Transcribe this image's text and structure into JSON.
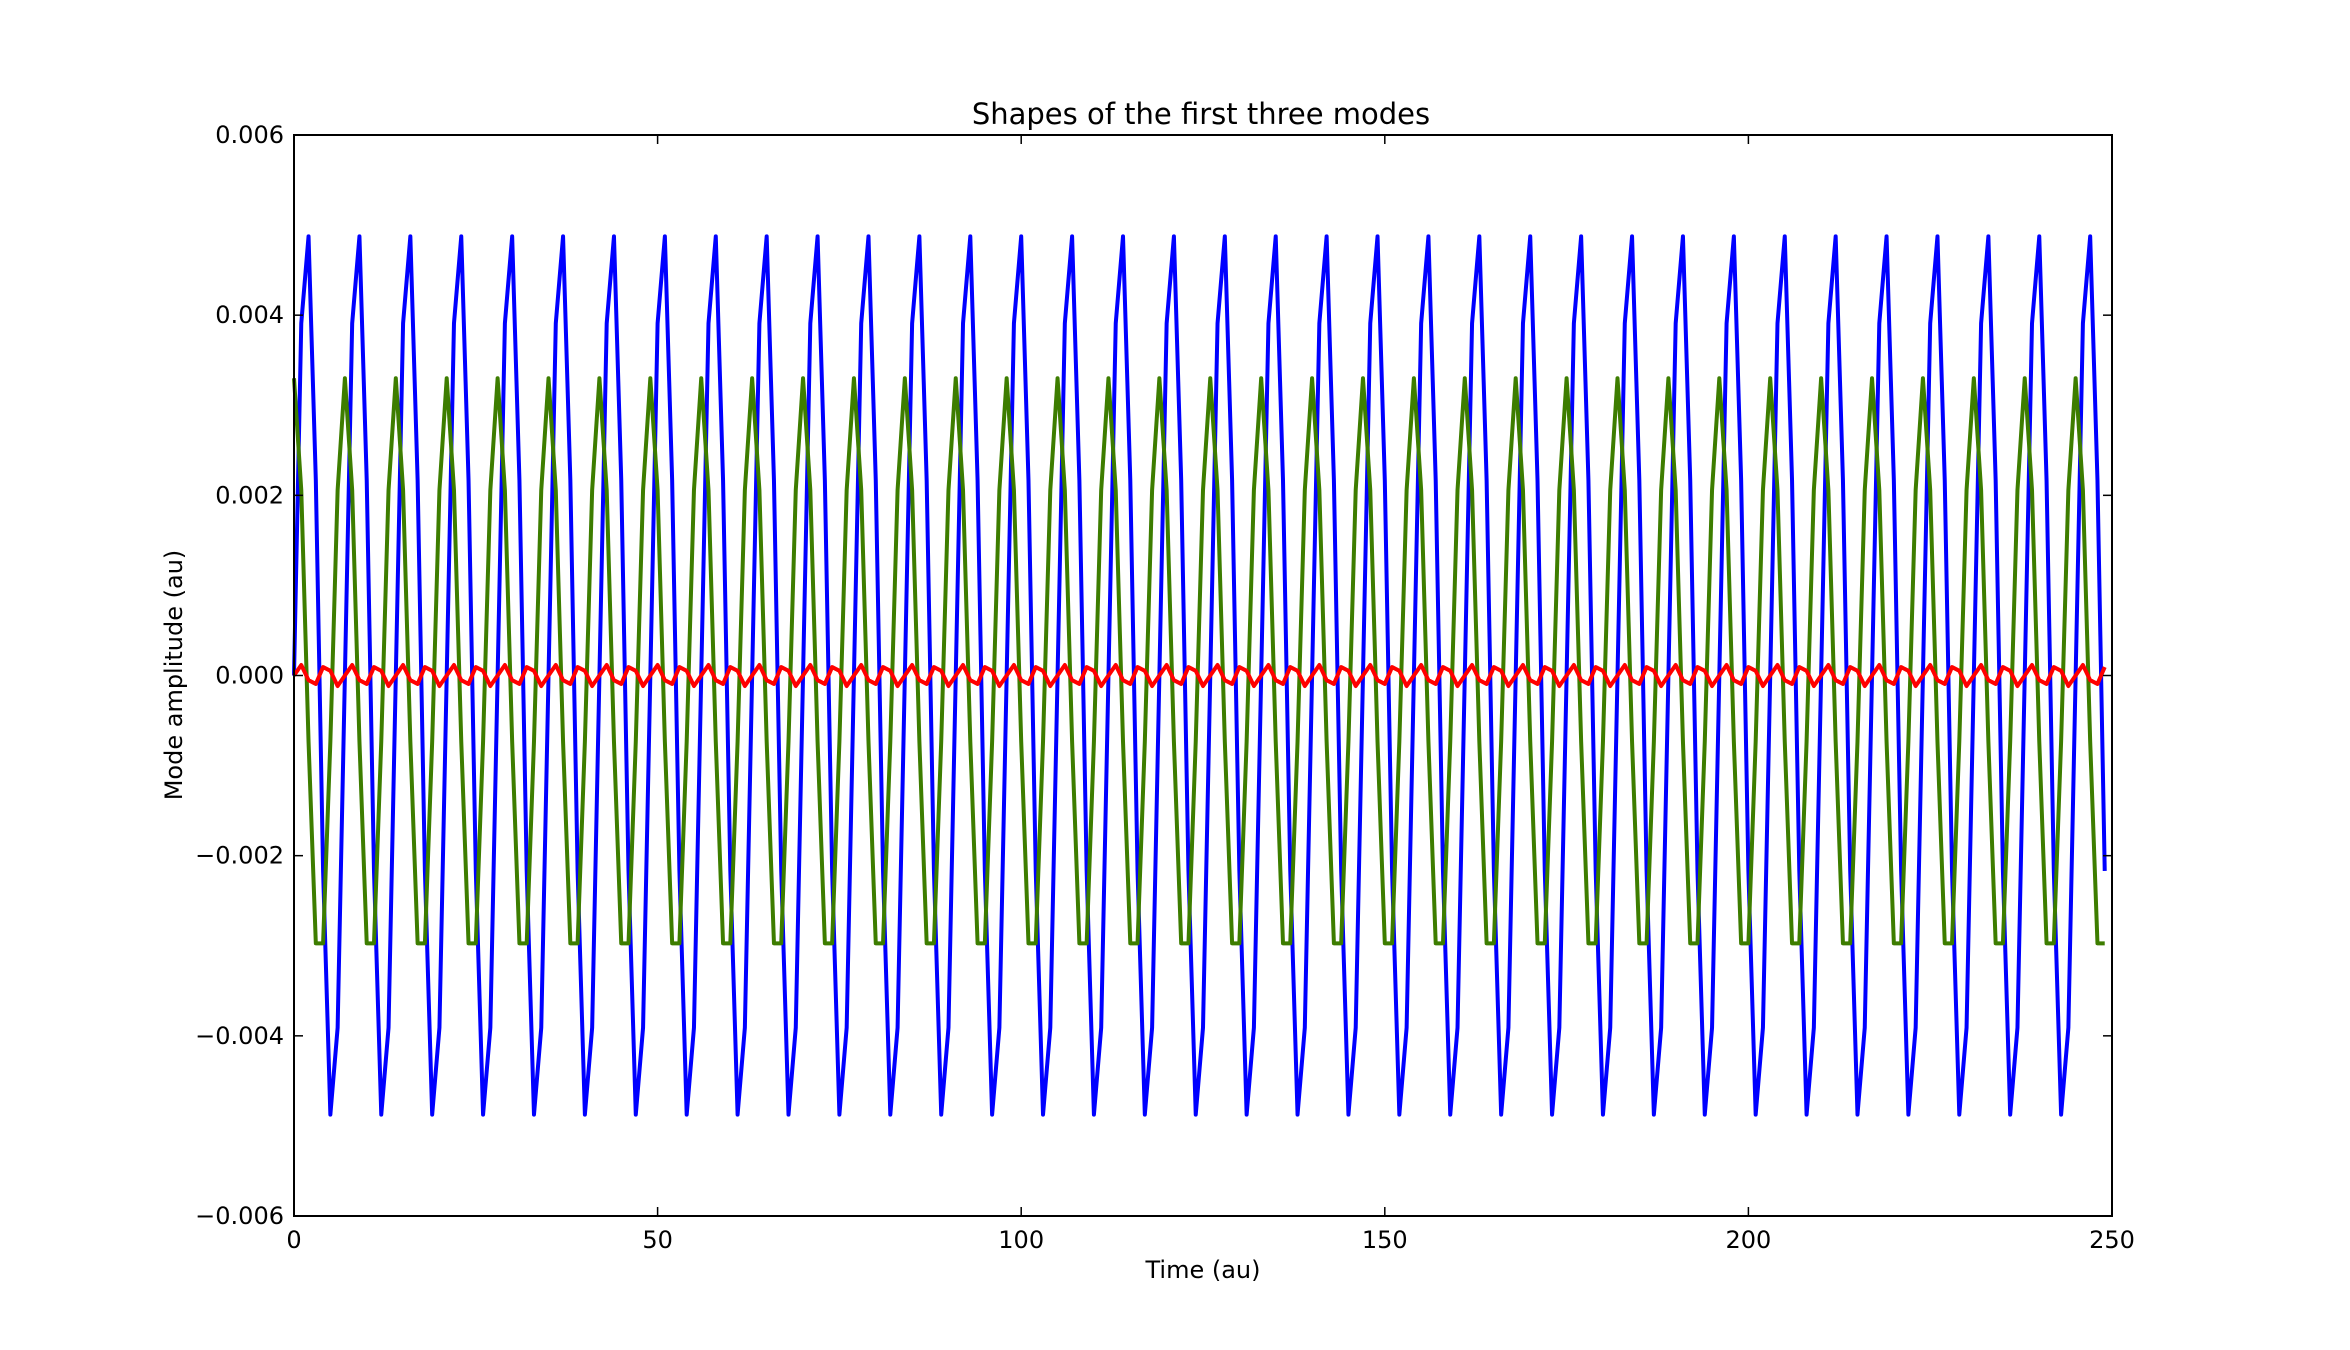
{
  "chart_data": {
    "type": "line",
    "title": "Shapes of the first three modes",
    "xlabel": "Time (au)",
    "ylabel": "Mode amplitude (au)",
    "xlim": [
      0,
      250
    ],
    "ylim": [
      -0.006,
      0.006
    ],
    "xticks": [
      0,
      50,
      100,
      150,
      200,
      250
    ],
    "xtick_labels": [
      "0",
      "50",
      "100",
      "150",
      "200",
      "250"
    ],
    "yticks": [
      -0.006,
      -0.004,
      -0.002,
      0.0,
      0.002,
      0.004,
      0.006
    ],
    "ytick_labels": [
      "−0.006",
      "−0.004",
      "−0.002",
      "0.000",
      "0.002",
      "0.004",
      "0.006"
    ],
    "grid": false,
    "legend": false,
    "x": {
      "start": 0,
      "end": 249,
      "step": 1
    },
    "series": [
      {
        "color": "#0000ff",
        "amplitude": 0.005,
        "period": 7.0,
        "phase_deg": 0
      },
      {
        "color": "#3d7d00",
        "amplitude": 0.0033,
        "period": 7.0,
        "phase_deg": 90
      },
      {
        "color": "#ff0000",
        "amplitude": 0.00012,
        "period": 3.5,
        "phase_deg": 0
      }
    ]
  }
}
